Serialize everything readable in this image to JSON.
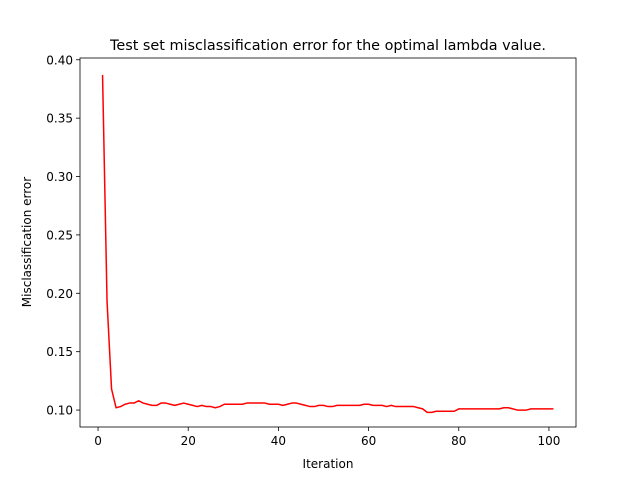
{
  "chart_data": {
    "type": "line",
    "title": "Test set misclassification error for the optimal lambda value.",
    "xlabel": "Iteration",
    "ylabel": "Misclassification error",
    "xlim": [
      -4.0,
      106.0
    ],
    "ylim": [
      0.0855,
      0.4015
    ],
    "xticks": [
      0,
      20,
      40,
      60,
      80,
      100
    ],
    "xtick_labels": [
      "0",
      "20",
      "40",
      "60",
      "80",
      "100"
    ],
    "yticks": [
      0.1,
      0.15,
      0.2,
      0.25,
      0.3,
      0.35,
      0.4
    ],
    "ytick_labels": [
      "0.10",
      "0.15",
      "0.20",
      "0.25",
      "0.30",
      "0.35",
      "0.40"
    ],
    "grid": false,
    "legend": "none",
    "series": [
      {
        "color": "#ff0000",
        "x": [
          1,
          2,
          3,
          4,
          5,
          6,
          7,
          8,
          9,
          10,
          11,
          12,
          13,
          14,
          15,
          16,
          17,
          18,
          19,
          20,
          21,
          22,
          23,
          24,
          25,
          26,
          27,
          28,
          29,
          30,
          31,
          32,
          33,
          34,
          35,
          36,
          37,
          38,
          39,
          40,
          41,
          42,
          43,
          44,
          45,
          46,
          47,
          48,
          49,
          50,
          51,
          52,
          53,
          54,
          55,
          56,
          57,
          58,
          59,
          60,
          61,
          62,
          63,
          64,
          65,
          66,
          67,
          68,
          69,
          70,
          71,
          72,
          73,
          74,
          75,
          76,
          77,
          78,
          79,
          80,
          81,
          82,
          83,
          84,
          85,
          86,
          87,
          88,
          89,
          90,
          91,
          92,
          93,
          94,
          95,
          96,
          97,
          98,
          99,
          100,
          101
        ],
        "y": [
          0.387,
          0.193,
          0.118,
          0.102,
          0.103,
          0.105,
          0.106,
          0.106,
          0.108,
          0.106,
          0.105,
          0.104,
          0.104,
          0.106,
          0.106,
          0.105,
          0.104,
          0.105,
          0.106,
          0.105,
          0.104,
          0.103,
          0.104,
          0.103,
          0.103,
          0.102,
          0.103,
          0.105,
          0.105,
          0.105,
          0.105,
          0.105,
          0.106,
          0.106,
          0.106,
          0.106,
          0.106,
          0.105,
          0.105,
          0.105,
          0.104,
          0.105,
          0.106,
          0.106,
          0.105,
          0.104,
          0.103,
          0.103,
          0.104,
          0.104,
          0.103,
          0.103,
          0.104,
          0.104,
          0.104,
          0.104,
          0.104,
          0.104,
          0.105,
          0.105,
          0.104,
          0.104,
          0.104,
          0.103,
          0.104,
          0.103,
          0.103,
          0.103,
          0.103,
          0.103,
          0.102,
          0.101,
          0.098,
          0.098,
          0.099,
          0.099,
          0.099,
          0.099,
          0.099,
          0.101,
          0.101,
          0.101,
          0.101,
          0.101,
          0.101,
          0.101,
          0.101,
          0.101,
          0.101,
          0.102,
          0.102,
          0.101,
          0.1,
          0.1,
          0.1,
          0.101,
          0.101,
          0.101,
          0.101,
          0.101,
          0.101
        ]
      }
    ]
  }
}
